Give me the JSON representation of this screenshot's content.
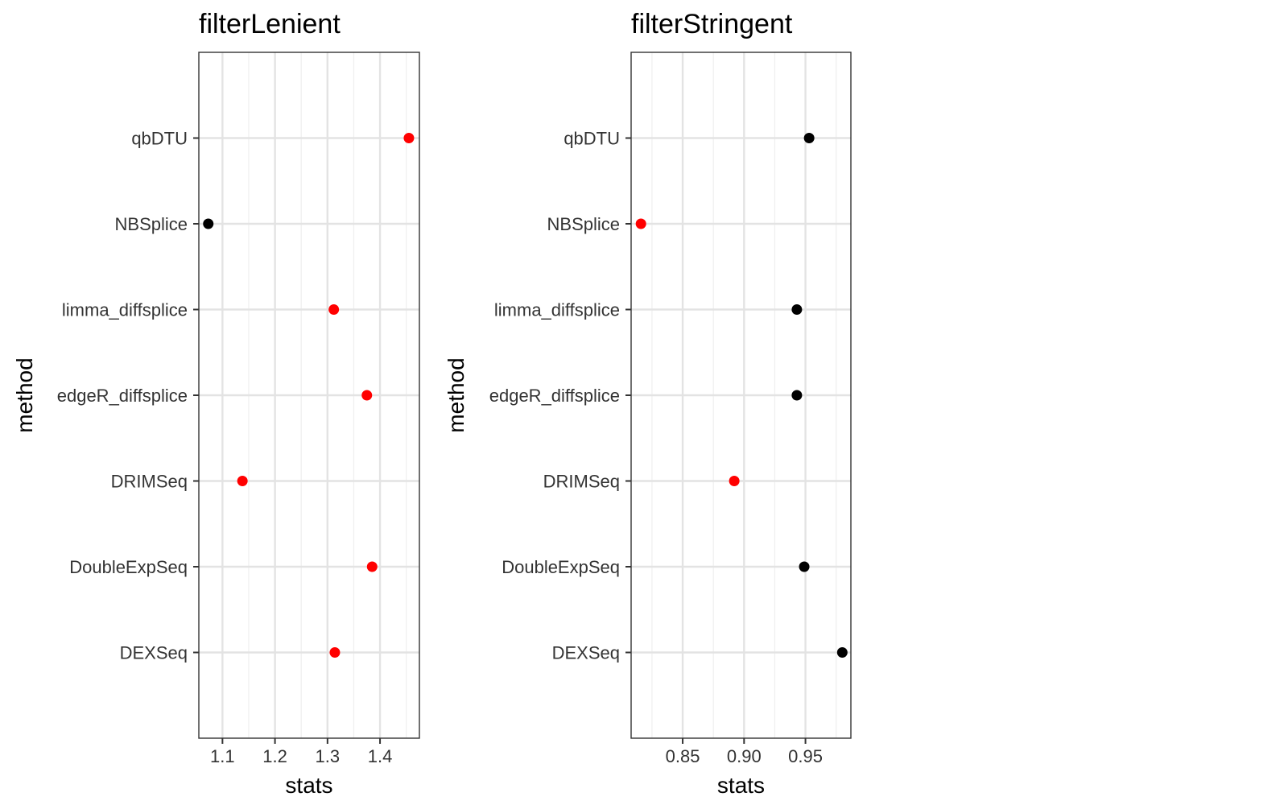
{
  "chart_data": [
    {
      "type": "scatter",
      "title": "filterLenient",
      "xlabel": "stats",
      "ylabel": "method",
      "categories": [
        "DEXSeq",
        "DoubleExpSeq",
        "DRIMSeq",
        "edgeR_diffsplice",
        "limma_diffsplice",
        "NBSplice",
        "qbDTU"
      ],
      "xlim": [
        1.055,
        1.475
      ],
      "xticks": [
        "1.1",
        "1.2",
        "1.3",
        "1.4"
      ],
      "xtick_values": [
        1.1,
        1.2,
        1.3,
        1.4
      ],
      "grid": true,
      "points": [
        {
          "method": "qbDTU",
          "stats": 1.455,
          "color": "#ff0000"
        },
        {
          "method": "NBSplice",
          "stats": 1.073,
          "color": "#000000"
        },
        {
          "method": "limma_diffsplice",
          "stats": 1.312,
          "color": "#ff0000"
        },
        {
          "method": "edgeR_diffsplice",
          "stats": 1.375,
          "color": "#ff0000"
        },
        {
          "method": "DRIMSeq",
          "stats": 1.138,
          "color": "#ff0000"
        },
        {
          "method": "DoubleExpSeq",
          "stats": 1.385,
          "color": "#ff0000"
        },
        {
          "method": "DEXSeq",
          "stats": 1.314,
          "color": "#ff0000"
        }
      ]
    },
    {
      "type": "scatter",
      "title": "filterStringent",
      "xlabel": "stats",
      "ylabel": "method",
      "categories": [
        "DEXSeq",
        "DoubleExpSeq",
        "DRIMSeq",
        "edgeR_diffsplice",
        "limma_diffsplice",
        "NBSplice",
        "qbDTU"
      ],
      "xlim": [
        0.808,
        0.987
      ],
      "xticks": [
        "0.85",
        "0.90",
        "0.95"
      ],
      "xtick_values": [
        0.85,
        0.9,
        0.95
      ],
      "grid": true,
      "points": [
        {
          "method": "qbDTU",
          "stats": 0.953,
          "color": "#000000"
        },
        {
          "method": "NBSplice",
          "stats": 0.816,
          "color": "#ff0000"
        },
        {
          "method": "limma_diffsplice",
          "stats": 0.943,
          "color": "#000000"
        },
        {
          "method": "edgeR_diffsplice",
          "stats": 0.943,
          "color": "#000000"
        },
        {
          "method": "DRIMSeq",
          "stats": 0.892,
          "color": "#ff0000"
        },
        {
          "method": "DoubleExpSeq",
          "stats": 0.949,
          "color": "#000000"
        },
        {
          "method": "DEXSeq",
          "stats": 0.98,
          "color": "#000000"
        }
      ]
    }
  ]
}
